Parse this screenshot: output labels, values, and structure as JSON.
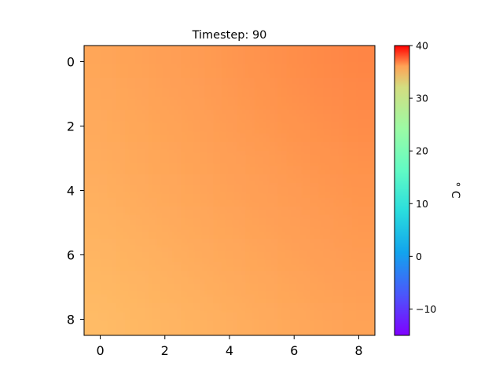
{
  "chart_data": {
    "type": "heatmap",
    "title": "Timestep: 90",
    "x_ticks": [
      0,
      2,
      4,
      6,
      8
    ],
    "y_ticks": [
      0,
      2,
      4,
      6,
      8
    ],
    "xlim": [
      -0.5,
      8.5
    ],
    "ylim": [
      8.5,
      -0.5
    ],
    "grid": false,
    "colormap": "rainbow",
    "colorbar": {
      "label": "° C",
      "range": [
        -15,
        40
      ],
      "ticks": [
        -10,
        0,
        10,
        20,
        30,
        40
      ]
    },
    "z": [
      [
        27.6,
        27.9,
        28.2,
        28.5,
        28.9,
        29.3,
        29.7,
        30.1,
        30.4
      ],
      [
        27.4,
        27.7,
        28.0,
        28.3,
        28.7,
        29.1,
        29.5,
        29.8,
        30.1
      ],
      [
        27.2,
        27.5,
        27.8,
        28.1,
        28.5,
        28.8,
        29.2,
        29.5,
        29.8
      ],
      [
        27.0,
        27.3,
        27.6,
        27.9,
        28.2,
        28.5,
        28.9,
        29.2,
        29.4
      ],
      [
        26.8,
        27.1,
        27.4,
        27.7,
        28.0,
        28.3,
        28.6,
        28.9,
        29.1
      ],
      [
        26.5,
        26.8,
        27.1,
        27.4,
        27.7,
        28.0,
        28.3,
        28.6,
        28.8
      ],
      [
        26.2,
        26.5,
        26.8,
        27.1,
        27.4,
        27.7,
        28.0,
        28.3,
        28.5
      ],
      [
        25.9,
        26.2,
        26.5,
        26.8,
        27.1,
        27.4,
        27.7,
        28.0,
        28.2
      ],
      [
        25.6,
        25.9,
        26.2,
        26.5,
        26.8,
        27.1,
        27.4,
        27.7,
        27.9
      ]
    ]
  }
}
